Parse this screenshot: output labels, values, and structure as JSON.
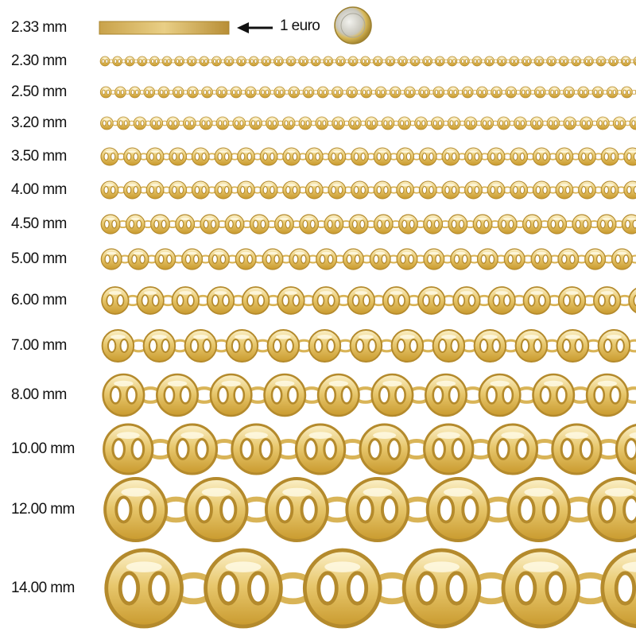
{
  "reference": {
    "label": "2.33 mm",
    "coin_label": "1 euro"
  },
  "chains": [
    "2.30 mm",
    "2.50 mm",
    "3.20 mm",
    "3.50 mm",
    "4.00 mm",
    "4.50 mm",
    "5.00 mm",
    "6.00 mm",
    "7.00 mm",
    "8.00 mm",
    "10.00 mm",
    "12.00 mm",
    "14.00 mm"
  ]
}
